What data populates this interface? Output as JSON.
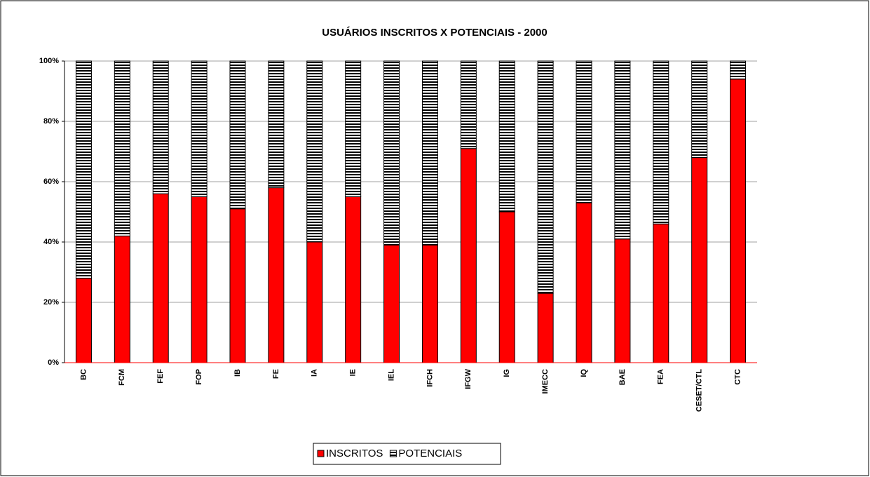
{
  "chart_data": {
    "type": "stacked_bar_100",
    "title": "USUÁRIOS INSCRITOS  X  POTENCIAIS - 2000",
    "categories": [
      "BC",
      "FCM",
      "FEF",
      "FOP",
      "IB",
      "FE",
      "IA",
      "IE",
      "IEL",
      "IFCH",
      "IFGW",
      "IG",
      "IMECC",
      "IQ",
      "BAE",
      "FEA",
      "CESET/CTL",
      "CTC"
    ],
    "series": [
      {
        "name": "INSCRITOS",
        "color": "#ff0000",
        "values": [
          28,
          42,
          56,
          55,
          51,
          58,
          40,
          55,
          39,
          39,
          71,
          50,
          23,
          53,
          41,
          46,
          68,
          94
        ]
      },
      {
        "name": "POTENCIAIS",
        "color": "#000000",
        "values": [
          72,
          58,
          44,
          45,
          49,
          42,
          60,
          45,
          61,
          61,
          29,
          50,
          77,
          47,
          59,
          54,
          32,
          6
        ]
      }
    ],
    "ylim": [
      0,
      100
    ],
    "yticks": [
      {
        "value": 0,
        "label": "0%"
      },
      {
        "value": 20,
        "label": "20%"
      },
      {
        "value": 40,
        "label": "40%"
      },
      {
        "value": 60,
        "label": "60%"
      },
      {
        "value": 80,
        "label": "80%"
      },
      {
        "value": 100,
        "label": "100%"
      }
    ],
    "grid": true,
    "legend": "bottom"
  }
}
